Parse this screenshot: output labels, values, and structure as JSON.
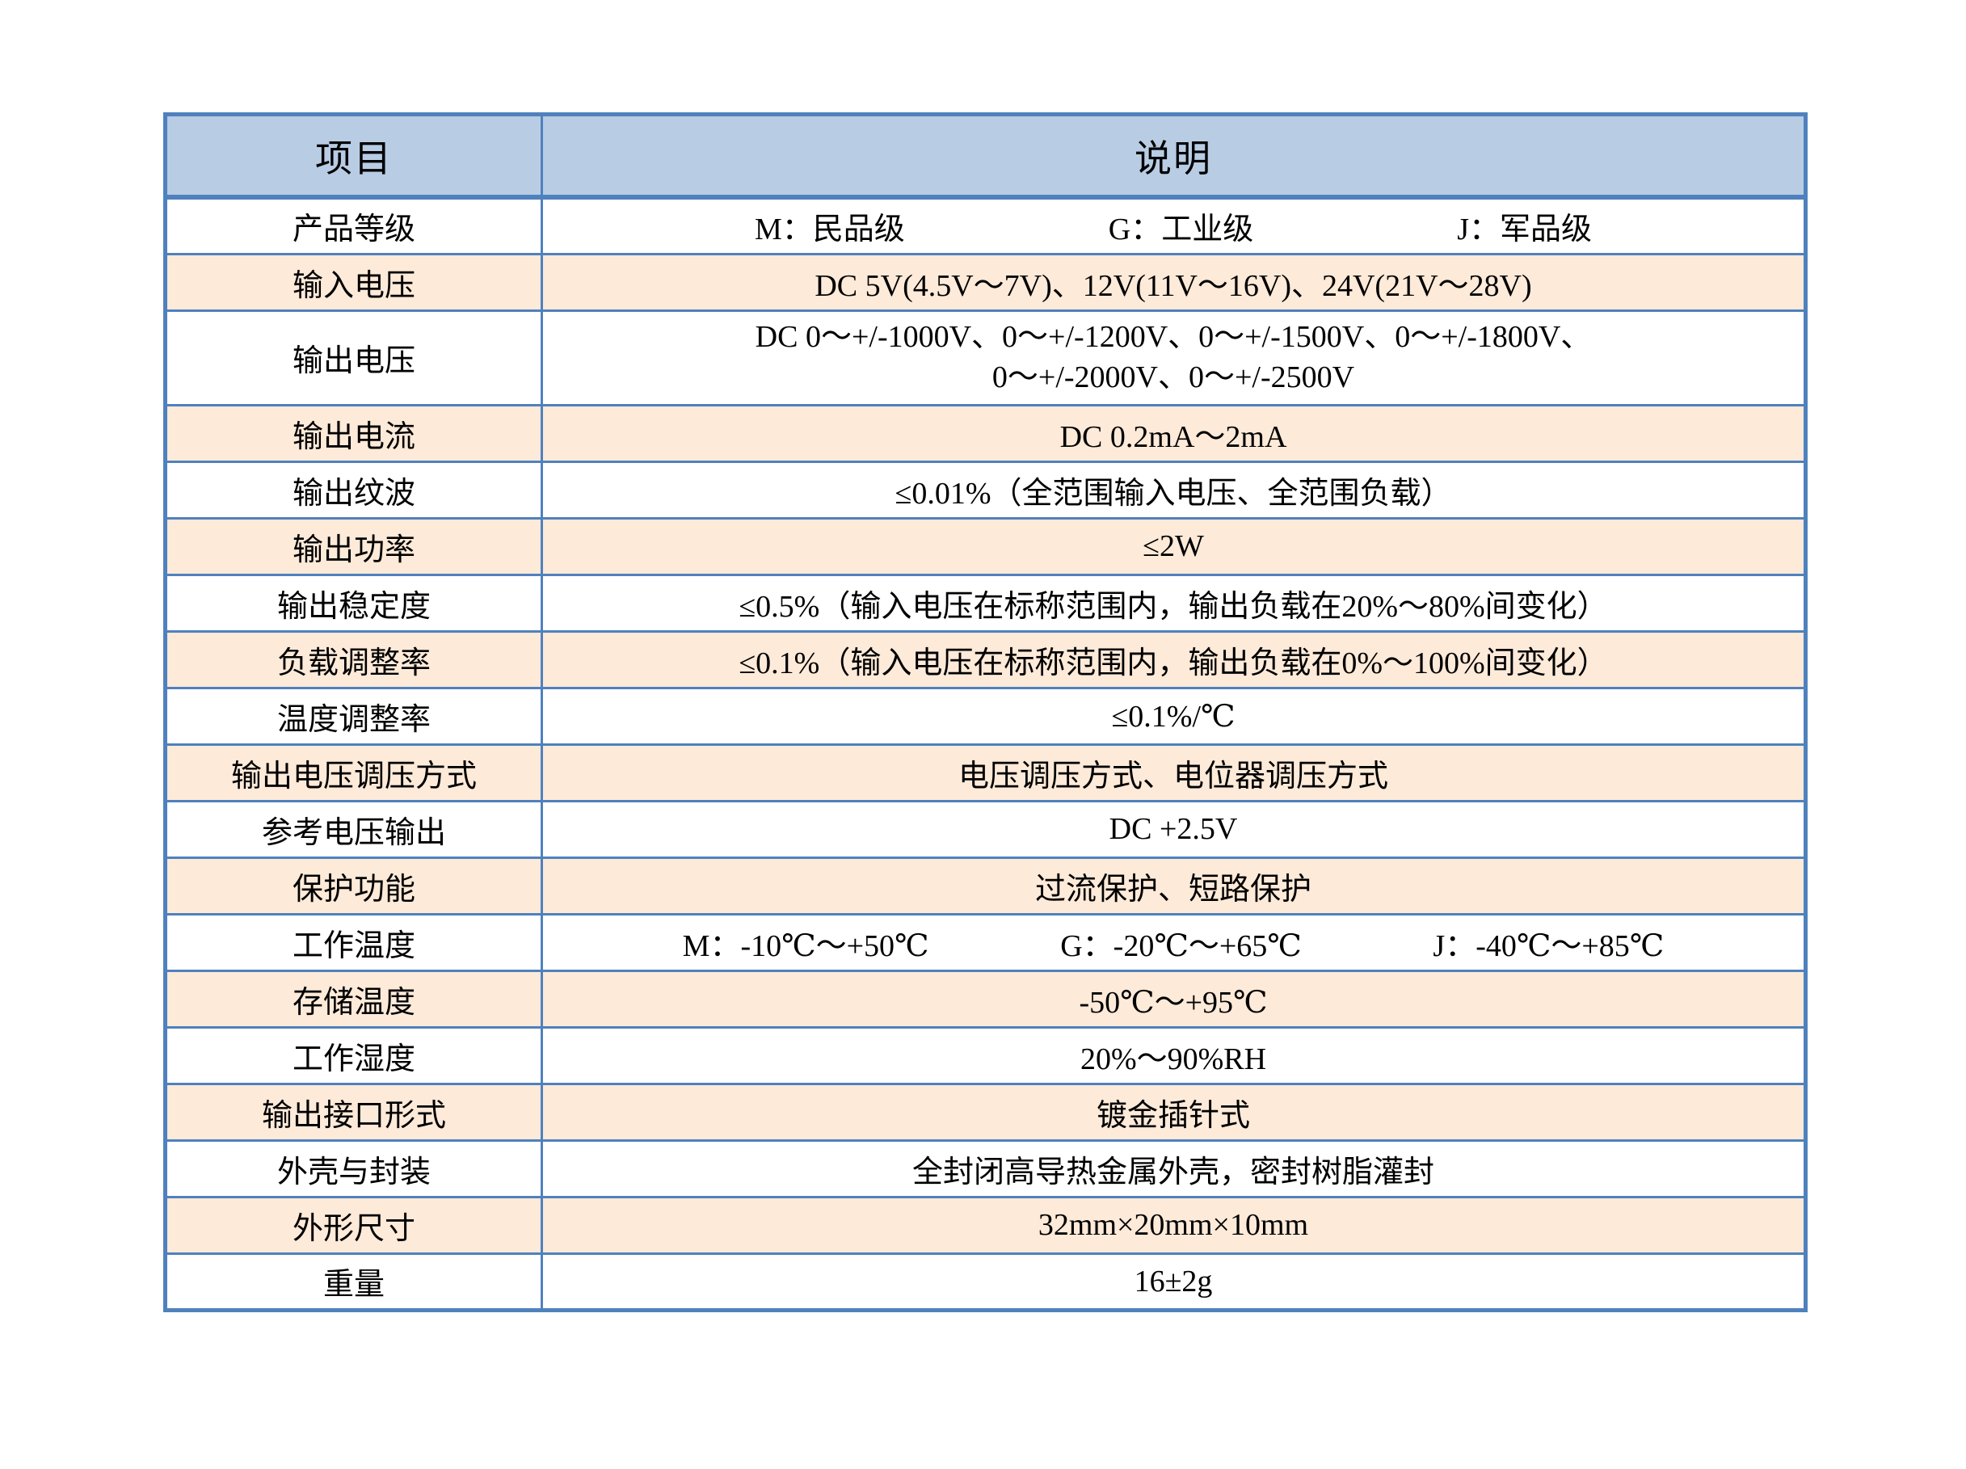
{
  "colors": {
    "border_blue": "#4f81bd",
    "header_fill": "#b8cce4",
    "accent_row_fill": "#fdead9",
    "plain_row_fill": "#ffffff",
    "text": "#000000"
  },
  "table": {
    "header": {
      "item": "项目",
      "desc": "说明"
    },
    "rows": [
      {
        "item": "产品等级",
        "parts": [
          "M：民品级",
          "G：工业级",
          "J：军品级"
        ]
      },
      {
        "item": "输入电压",
        "desc": "DC 5V(4.5V～7V)、12V(11V～16V)、24V(21V～28V)"
      },
      {
        "item": "输出电压",
        "lines": [
          "DC 0～+/-1000V、0～+/-1200V、0～+/-1500V、0～+/-1800V、",
          "0～+/-2000V、0～+/-2500V"
        ]
      },
      {
        "item": "输出电流",
        "desc": "DC 0.2mA～2mA"
      },
      {
        "item": "输出纹波",
        "desc": "≤0.01%（全范围输入电压、全范围负载）"
      },
      {
        "item": "输出功率",
        "desc": "≤2W"
      },
      {
        "item": "输出稳定度",
        "desc": "≤0.5%（输入电压在标称范围内，输出负载在20%～80%间变化）"
      },
      {
        "item": "负载调整率",
        "desc": "≤0.1%（输入电压在标称范围内，输出负载在0%～100%间变化）"
      },
      {
        "item": "温度调整率",
        "desc": "≤0.1%/℃"
      },
      {
        "item": "输出电压调压方式",
        "desc": "电压调压方式、电位器调压方式"
      },
      {
        "item": "参考电压输出",
        "desc": "DC +2.5V"
      },
      {
        "item": "保护功能",
        "desc": "过流保护、短路保护"
      },
      {
        "item": "工作温度",
        "parts": [
          "M：-10℃～+50℃",
          "G：-20℃～+65℃",
          "J：-40℃～+85℃"
        ]
      },
      {
        "item": "存储温度",
        "desc": "-50℃～+95℃"
      },
      {
        "item": "工作湿度",
        "desc": "20%～90%RH"
      },
      {
        "item": "输出接口形式",
        "desc": "镀金插针式"
      },
      {
        "item": "外壳与封装",
        "desc": "全封闭高导热金属外壳，密封树脂灌封"
      },
      {
        "item": "外形尺寸",
        "desc": "32mm×20mm×10mm"
      },
      {
        "item": "重量",
        "desc": "16±2g"
      }
    ]
  }
}
